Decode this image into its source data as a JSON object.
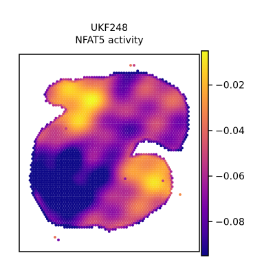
{
  "chart_data": {
    "type": "heatmap",
    "title": "UKF248",
    "subtitle": "NFAT5 activity",
    "xlabel": "",
    "ylabel": "",
    "grid": false,
    "colormap": "plasma",
    "colorbar": {
      "range": [
        -0.095,
        -0.005
      ],
      "ticks": [
        {
          "value": -0.02,
          "label": "−0.02"
        },
        {
          "value": -0.04,
          "label": "−0.04"
        },
        {
          "value": -0.06,
          "label": "−0.06"
        },
        {
          "value": -0.08,
          "label": "−0.08"
        }
      ]
    }
  },
  "colors": {
    "frame": "#000000",
    "background": "#ffffff",
    "plasma": [
      "#0d0887",
      "#46039f",
      "#7201a8",
      "#9c179e",
      "#bd3786",
      "#d8576b",
      "#ed7953",
      "#fb9f3a",
      "#fdca26",
      "#f0f921"
    ]
  }
}
